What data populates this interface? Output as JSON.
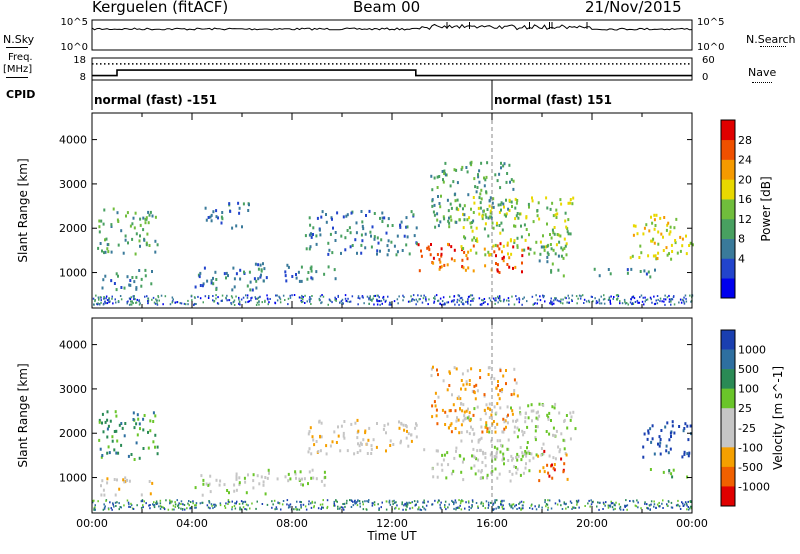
{
  "header": {
    "radar": "Kerguelen (fitACF)",
    "beam": "Beam 00",
    "date": "21/Nov/2015"
  },
  "side_labels": {
    "nsky": "N.Sky",
    "freq": "Freq.",
    "freq_unit": "[MHz]",
    "cpid": "CPID",
    "nsearch": "N.Search",
    "nave": "Nave"
  },
  "cpid_segments": [
    {
      "label": "normal (fast) -151",
      "start_h": 0
    },
    {
      "label": "normal (fast) 151",
      "start_h": 16
    }
  ],
  "chart_data": [
    {
      "type": "line",
      "name": "N.Sky / N.Search",
      "x_range_h": [
        0,
        24
      ],
      "ytick_left": [
        "10^5",
        "10^0"
      ],
      "ytick_right": [
        "10^5",
        "10^0"
      ]
    },
    {
      "type": "line",
      "name": "Freq / Nave",
      "x_range_h": [
        0,
        24
      ],
      "left_ylim": [
        8,
        18
      ],
      "left_ticks": [
        "18",
        "8"
      ],
      "right_ylim": [
        0,
        60
      ],
      "right_ticks": [
        "60",
        "0"
      ],
      "freq_steps": [
        {
          "t": 0,
          "v": 10
        },
        {
          "t": 1,
          "v": 12.5
        },
        {
          "t": 12.95,
          "v": 10
        },
        {
          "t": 24,
          "v": 10
        }
      ],
      "nave_level": 44
    },
    {
      "type": "heatmap",
      "quantity": "Power",
      "xlabel": "",
      "ylabel": "Slant Range [km]",
      "ylim": [
        200,
        4600
      ],
      "yticks": [
        1000,
        2000,
        3000,
        4000
      ],
      "colorbar_label": "Power [dB]",
      "colorbar_ticks": [
        "28",
        "24",
        "20",
        "16",
        "12",
        "8",
        "4"
      ],
      "colors": [
        "#0000ee",
        "#2244cc",
        "#3a7a9a",
        "#48a060",
        "#70bd3c",
        "#e8d800",
        "#f59a00",
        "#ef5000",
        "#e00000"
      ],
      "echo_regions": [
        {
          "t0": 0.2,
          "t1": 2.6,
          "r0": 1400,
          "r1": 2500,
          "level": 3
        },
        {
          "t0": 0.3,
          "t1": 2.4,
          "r0": 600,
          "r1": 1100,
          "level": 2
        },
        {
          "t0": 4.1,
          "t1": 7.0,
          "r0": 600,
          "r1": 1200,
          "level": 2
        },
        {
          "t0": 4.4,
          "t1": 6.3,
          "r0": 2000,
          "r1": 2600,
          "level": 2
        },
        {
          "t0": 6.5,
          "t1": 9.8,
          "r0": 800,
          "r1": 1200,
          "level": 2
        },
        {
          "t0": 8.5,
          "t1": 13.0,
          "r0": 1400,
          "r1": 2400,
          "level": 2
        },
        {
          "t0": 13.0,
          "t1": 17.5,
          "r0": 1000,
          "r1": 1650,
          "level": 7
        },
        {
          "t0": 14.5,
          "t1": 19.3,
          "r0": 1400,
          "r1": 2700,
          "level": 4
        },
        {
          "t0": 13.5,
          "t1": 17.0,
          "r0": 2000,
          "r1": 3500,
          "level": 3
        },
        {
          "t0": 17.8,
          "t1": 19.0,
          "r0": 900,
          "r1": 1600,
          "level": 3
        },
        {
          "t0": 20.0,
          "t1": 22.5,
          "r0": 900,
          "r1": 1100,
          "level": 2
        },
        {
          "t0": 21.5,
          "t1": 24.0,
          "r0": 1300,
          "r1": 2300,
          "level": 5
        }
      ]
    },
    {
      "type": "heatmap",
      "quantity": "Velocity",
      "xlabel": "Time UT",
      "ylabel": "Slant Range [km]",
      "ylim": [
        200,
        4600
      ],
      "yticks": [
        1000,
        2000,
        3000,
        4000
      ],
      "colorbar_label": "Velocity [m s^-1]",
      "colorbar_ticks": [
        "1000",
        "500",
        "100",
        "25",
        "-25",
        "-100",
        "-500",
        "-1000"
      ],
      "colors": [
        "#1a3fb0",
        "#2e6fa0",
        "#2a8a55",
        "#6ac52a",
        "#c6c6c6",
        "#c6c6c6",
        "#f5a000",
        "#f06000",
        "#e00000"
      ],
      "xticks": [
        "00:00",
        "04:00",
        "08:00",
        "12:00",
        "16:00",
        "20:00",
        "00:00"
      ],
      "echo_regions": [
        {
          "t0": 0.2,
          "t1": 2.6,
          "r0": 1400,
          "r1": 2500,
          "level": 2
        },
        {
          "t0": 0.3,
          "t1": 2.4,
          "r0": 600,
          "r1": 1000,
          "level": 5
        },
        {
          "t0": 4.1,
          "t1": 7.0,
          "r0": 600,
          "r1": 1100,
          "level": 4
        },
        {
          "t0": 6.5,
          "t1": 9.8,
          "r0": 800,
          "r1": 1200,
          "level": 4
        },
        {
          "t0": 8.5,
          "t1": 13.0,
          "r0": 1500,
          "r1": 2300,
          "level": 5
        },
        {
          "t0": 13.0,
          "t1": 17.5,
          "r0": 900,
          "r1": 1650,
          "level": 4
        },
        {
          "t0": 14.5,
          "t1": 19.3,
          "r0": 1400,
          "r1": 2700,
          "level": 4
        },
        {
          "t0": 13.5,
          "t1": 17.0,
          "r0": 2000,
          "r1": 3500,
          "level": 6
        },
        {
          "t0": 17.8,
          "t1": 19.0,
          "r0": 900,
          "r1": 1600,
          "level": 7
        },
        {
          "t0": 22.0,
          "t1": 24.0,
          "r0": 1400,
          "r1": 2300,
          "level": 0
        },
        {
          "t0": 22.3,
          "t1": 24.0,
          "r0": 1000,
          "r1": 1200,
          "level": 3
        }
      ]
    }
  ]
}
